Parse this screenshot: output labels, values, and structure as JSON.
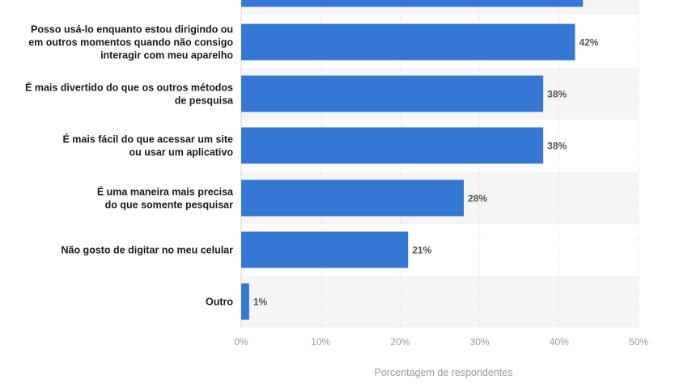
{
  "chart_data": {
    "type": "bar",
    "orientation": "horizontal",
    "categories": [
      "",
      "Posso usá-lo enquanto estou dirigindo ou em outros momentos quando não consigo interagir com meu aparelho",
      "É mais divertido do que os outros métodos de pesquisa",
      "É mais fácil do que acessar um site ou usar um aplicativo",
      "É uma maneira mais precisa do que somente pesquisar",
      "Não gosto de digitar no meu celular",
      "Outro"
    ],
    "category_lines": [
      [],
      [
        "Posso usá-lo enquanto estou dirigindo ou",
        "em outros momentos quando não consigo",
        "interagir com meu aparelho"
      ],
      [
        "É mais divertido do que os outros métodos",
        "de pesquisa"
      ],
      [
        "É mais fácil do que acessar um site",
        "ou usar um aplicativo"
      ],
      [
        "É uma maneira mais precisa",
        "do que somente pesquisar"
      ],
      [
        "Não gosto de digitar no meu celular"
      ],
      [
        "Outro"
      ]
    ],
    "values": [
      43,
      42,
      38,
      38,
      28,
      21,
      1
    ],
    "value_labels": [
      "",
      "42%",
      "38%",
      "38%",
      "28%",
      "21%",
      "1%"
    ],
    "xlabel": "Porcentagem de respondentes",
    "ylabel": "",
    "xlim": [
      0,
      50
    ],
    "xticks": [
      0,
      10,
      20,
      30,
      40,
      50
    ],
    "xtick_labels": [
      "0%",
      "10%",
      "20%",
      "30%",
      "40%",
      "50%"
    ],
    "bar_color": "#3578d4",
    "stripe_color": "#f5f5f5",
    "grid": true,
    "grid_style": "dotted vertical"
  }
}
